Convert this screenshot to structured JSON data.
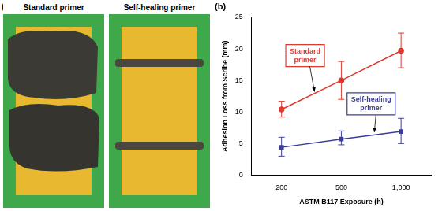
{
  "panels": {
    "a": {
      "label": "(a)",
      "captions": [
        "Standard primer",
        "Self-healing primer"
      ]
    },
    "b": {
      "label": "(b)"
    }
  },
  "chart_data": {
    "type": "line",
    "x_label": "ASTM B117 Exposure (h)",
    "y_label": "Adhesion Loss from Scribe (mm)",
    "categories": [
      "200",
      "500",
      "1,000"
    ],
    "series": [
      {
        "name": "Standard primer",
        "color": "#e0392e",
        "marker": "circle",
        "line_style": "solid",
        "values": [
          10.4,
          15,
          19.7
        ],
        "error_low": [
          9.2,
          12,
          17
        ],
        "error_high": [
          11.7,
          18,
          22.5
        ]
      },
      {
        "name": "Self-healing primer",
        "color": "#3d3f95",
        "marker": "square",
        "line_style": "solid",
        "values": [
          4.4,
          5.7,
          6.9
        ],
        "error_low": [
          3,
          4.8,
          5
        ],
        "error_high": [
          6,
          7,
          9
        ]
      }
    ],
    "ylim": [
      0,
      25
    ],
    "yticks": [
      0,
      5,
      10,
      15,
      20,
      25
    ],
    "grid": false
  }
}
